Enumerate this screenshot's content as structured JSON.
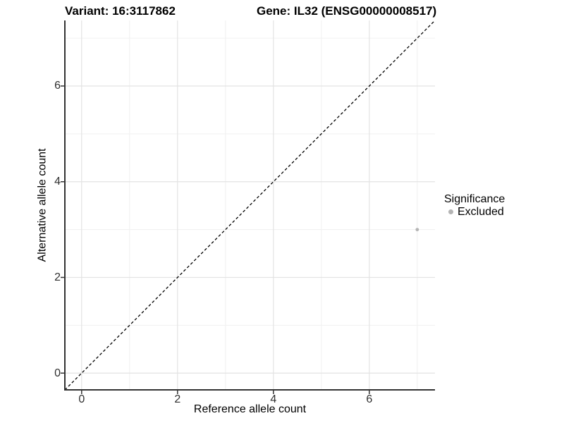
{
  "titles": {
    "variant": "Variant: 16:3117862",
    "gene": "Gene: IL32 (ENSG00000008517)"
  },
  "chart_data": {
    "type": "scatter",
    "title_left": "Variant: 16:3117862",
    "title_right": "Gene: IL32 (ENSG00000008517)",
    "xlabel": "Reference allele count",
    "ylabel": "Alternative allele count",
    "xlim": [
      -0.35,
      7.37
    ],
    "ylim": [
      -0.35,
      7.37
    ],
    "x_major_ticks": [
      0,
      2,
      4,
      6
    ],
    "x_tick_labels": [
      "0",
      "2",
      "4",
      "6"
    ],
    "y_major_ticks": [
      0,
      2,
      4,
      6
    ],
    "y_tick_labels": [
      "0",
      "2",
      "4",
      "6"
    ],
    "x_minor_ticks": [
      1,
      3,
      5,
      7
    ],
    "y_minor_ticks": [
      1,
      3,
      5,
      7
    ],
    "grid": true,
    "reference_line": {
      "type": "identity",
      "equation": "y = x",
      "style": "dashed",
      "color": "#000000"
    },
    "series": [
      {
        "name": "Excluded",
        "color": "#b4b4b4",
        "points": [
          {
            "x": 7,
            "y": 3
          }
        ]
      }
    ],
    "legend": {
      "title": "Significance",
      "position": "right",
      "entries": [
        {
          "label": "Excluded",
          "color": "#b4b4b4"
        }
      ]
    },
    "colors": {
      "background": "#ffffff",
      "grid_major": "#e3e3e3",
      "grid_minor": "#f0f0f0",
      "axis_line": "#333333",
      "tick_mark": "#333333",
      "tick_text": "#303030",
      "point": "#b4b4b4"
    }
  }
}
